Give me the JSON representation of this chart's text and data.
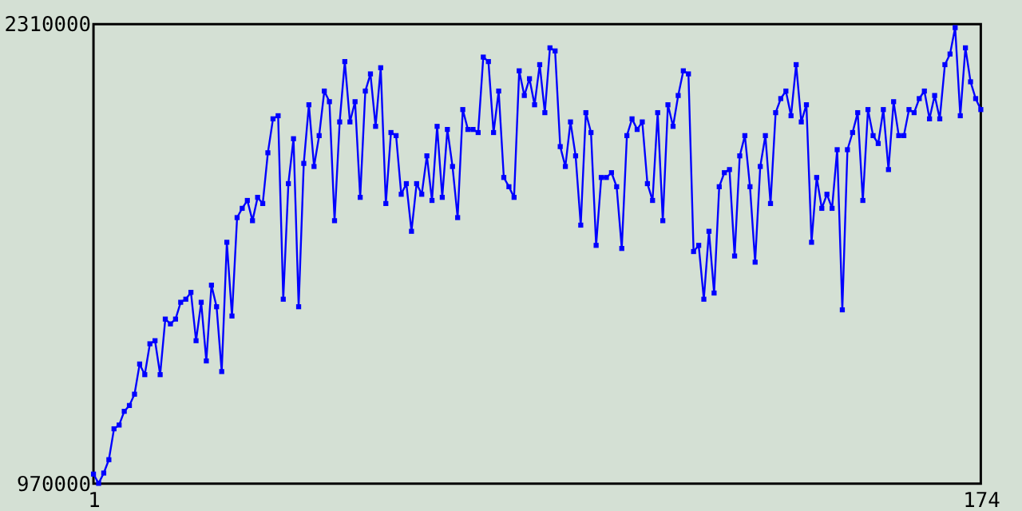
{
  "chart_data": {
    "type": "line",
    "x": [
      1,
      2,
      3,
      4,
      5,
      6,
      7,
      8,
      9,
      10,
      11,
      12,
      13,
      14,
      15,
      16,
      17,
      18,
      19,
      20,
      21,
      22,
      23,
      24,
      25,
      26,
      27,
      28,
      29,
      30,
      31,
      32,
      33,
      34,
      35,
      36,
      37,
      38,
      39,
      40,
      41,
      42,
      43,
      44,
      45,
      46,
      47,
      48,
      49,
      50,
      51,
      52,
      53,
      54,
      55,
      56,
      57,
      58,
      59,
      60,
      61,
      62,
      63,
      64,
      65,
      66,
      67,
      68,
      69,
      70,
      71,
      72,
      73,
      74,
      75,
      76,
      77,
      78,
      79,
      80,
      81,
      82,
      83,
      84,
      85,
      86,
      87,
      88,
      89,
      90,
      91,
      92,
      93,
      94,
      95,
      96,
      97,
      98,
      99,
      100,
      101,
      102,
      103,
      104,
      105,
      106,
      107,
      108,
      109,
      110,
      111,
      112,
      113,
      114,
      115,
      116,
      117,
      118,
      119,
      120,
      121,
      122,
      123,
      124,
      125,
      126,
      127,
      128,
      129,
      130,
      131,
      132,
      133,
      134,
      135,
      136,
      137,
      138,
      139,
      140,
      141,
      142,
      143,
      144,
      145,
      146,
      147,
      148,
      149,
      150,
      151,
      152,
      153,
      154,
      155,
      156,
      157,
      158,
      159,
      160,
      161,
      162,
      163,
      164,
      165,
      166,
      167,
      168,
      169,
      170,
      171,
      172,
      173,
      174
    ],
    "series": [
      {
        "color": "#0000ff",
        "values": [
          998000,
          971000,
          1001000,
          1040000,
          1130000,
          1141000,
          1181000,
          1198000,
          1231000,
          1319000,
          1288000,
          1378000,
          1387000,
          1288000,
          1450000,
          1436000,
          1450000,
          1499000,
          1508000,
          1528000,
          1387000,
          1499000,
          1328000,
          1549000,
          1486000,
          1297000,
          1674000,
          1459000,
          1746000,
          1773000,
          1796000,
          1737000,
          1805000,
          1787000,
          1935000,
          2034000,
          2043000,
          1508000,
          1845000,
          1976000,
          1486000,
          1904000,
          2075000,
          1895000,
          1985000,
          2115000,
          2084000,
          1737000,
          2025000,
          2201000,
          2025000,
          2084000,
          1805000,
          2115000,
          2165000,
          2012000,
          2183000,
          1787000,
          1994000,
          1985000,
          1814000,
          1845000,
          1706000,
          1845000,
          1814000,
          1926000,
          1796000,
          2012000,
          1805000,
          2003000,
          1895000,
          1746000,
          2061000,
          2003000,
          2003000,
          1994000,
          2214000,
          2201000,
          1994000,
          2115000,
          1863000,
          1836000,
          1805000,
          2174000,
          2102000,
          2151000,
          2075000,
          2192000,
          2052000,
          2241000,
          2232000,
          1953000,
          1895000,
          2025000,
          1926000,
          1724000,
          2052000,
          1994000,
          1665000,
          1863000,
          1863000,
          1877000,
          1836000,
          1656000,
          1985000,
          2034000,
          2003000,
          2025000,
          1845000,
          1796000,
          2052000,
          1737000,
          2075000,
          2012000,
          2102000,
          2174000,
          2165000,
          1647000,
          1665000,
          1508000,
          1706000,
          1526000,
          1836000,
          1877000,
          1886000,
          1634000,
          1926000,
          1985000,
          1836000,
          1616000,
          1895000,
          1985000,
          1787000,
          2052000,
          2093000,
          2115000,
          2043000,
          2192000,
          2025000,
          2075000,
          1674000,
          1863000,
          1773000,
          1814000,
          1773000,
          1944000,
          1477000,
          1944000,
          1994000,
          2052000,
          1796000,
          2061000,
          1985000,
          1962000,
          2061000,
          1886000,
          2084000,
          1985000,
          1985000,
          2061000,
          2052000,
          2093000,
          2115000,
          2034000,
          2102000,
          2034000,
          2192000,
          2223000,
          2300000,
          2043000,
          2241000,
          2142000,
          2093000,
          2061000
        ]
      }
    ],
    "xlim": [
      1,
      174
    ],
    "xticks": [
      1,
      174
    ],
    "ylim": [
      970000,
      2310000
    ],
    "yticks": [
      970000,
      2310000
    ],
    "marker": "square",
    "line_style": "solid"
  }
}
